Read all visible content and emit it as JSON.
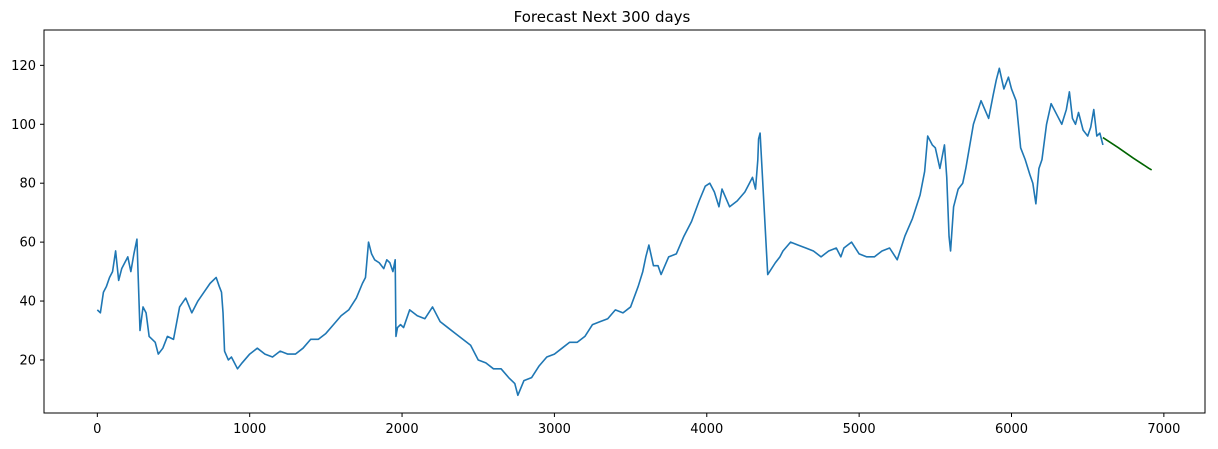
{
  "chart_data": {
    "type": "line",
    "title": "Forecast Next 300 days",
    "xlabel": "",
    "ylabel": "",
    "xlim": [
      -350,
      7270
    ],
    "ylim": [
      2,
      132
    ],
    "x_ticks": [
      0,
      1000,
      2000,
      3000,
      4000,
      5000,
      6000,
      7000
    ],
    "y_ticks": [
      20,
      40,
      60,
      80,
      100,
      120
    ],
    "grid": false,
    "legend": "none",
    "series": [
      {
        "color": "#1f77b4",
        "x": [
          0,
          20,
          40,
          60,
          80,
          100,
          120,
          140,
          160,
          180,
          200,
          220,
          240,
          260,
          280,
          300,
          320,
          340,
          360,
          380,
          400,
          430,
          460,
          500,
          540,
          580,
          620,
          660,
          700,
          740,
          780,
          800,
          815,
          825,
          835,
          860,
          880,
          900,
          920,
          950,
          1000,
          1050,
          1100,
          1150,
          1200,
          1250,
          1300,
          1350,
          1400,
          1450,
          1500,
          1550,
          1600,
          1650,
          1700,
          1740,
          1760,
          1780,
          1800,
          1820,
          1850,
          1880,
          1900,
          1920,
          1940,
          1955,
          1960,
          1970,
          1990,
          2010,
          2050,
          2100,
          2150,
          2200,
          2250,
          2300,
          2350,
          2400,
          2450,
          2500,
          2550,
          2600,
          2650,
          2700,
          2740,
          2760,
          2800,
          2850,
          2900,
          2950,
          3000,
          3050,
          3100,
          3150,
          3200,
          3250,
          3300,
          3350,
          3400,
          3450,
          3500,
          3550,
          3580,
          3600,
          3620,
          3650,
          3680,
          3700,
          3750,
          3800,
          3850,
          3900,
          3950,
          3990,
          4020,
          4050,
          4080,
          4100,
          4150,
          4200,
          4250,
          4280,
          4300,
          4320,
          4335,
          4340,
          4350,
          4400,
          4450,
          4480,
          4500,
          4550,
          4600,
          4650,
          4700,
          4750,
          4800,
          4850,
          4880,
          4900,
          4950,
          5000,
          5050,
          5100,
          5150,
          5200,
          5250,
          5300,
          5350,
          5400,
          5430,
          5450,
          5480,
          5500,
          5530,
          5560,
          5575,
          5590,
          5600,
          5620,
          5650,
          5680,
          5700,
          5750,
          5800,
          5850,
          5880,
          5900,
          5920,
          5950,
          5980,
          6000,
          6030,
          6060,
          6090,
          6120,
          6140,
          6160,
          6180,
          6200,
          6230,
          6260,
          6300,
          6330,
          6360,
          6380,
          6400,
          6420,
          6440,
          6470,
          6500,
          6520,
          6540,
          6560,
          6580,
          6600
        ],
        "y": [
          37,
          36,
          43,
          45,
          48,
          50,
          57,
          47,
          51,
          53,
          55,
          50,
          56,
          61,
          30,
          38,
          36,
          28,
          27,
          26,
          22,
          24,
          28,
          27,
          38,
          41,
          36,
          40,
          43,
          46,
          48,
          45,
          43,
          36,
          23,
          20,
          21,
          19,
          17,
          19,
          22,
          24,
          22,
          21,
          23,
          22,
          22,
          24,
          27,
          27,
          29,
          32,
          35,
          37,
          41,
          46,
          48,
          60,
          56,
          54,
          53,
          51,
          54,
          53,
          50,
          54,
          28,
          31,
          32,
          31,
          37,
          35,
          34,
          38,
          33,
          31,
          29,
          27,
          25,
          20,
          19,
          17,
          17,
          14,
          12,
          8,
          13,
          14,
          18,
          21,
          22,
          24,
          26,
          26,
          28,
          32,
          33,
          34,
          37,
          36,
          38,
          45,
          50,
          55,
          59,
          52,
          52,
          49,
          55,
          56,
          62,
          67,
          74,
          79,
          80,
          77,
          72,
          78,
          72,
          74,
          77,
          80,
          82,
          78,
          88,
          95,
          97,
          49,
          53,
          55,
          57,
          60,
          59,
          58,
          57,
          55,
          57,
          58,
          55,
          58,
          60,
          56,
          55,
          55,
          57,
          58,
          54,
          62,
          68,
          76,
          84,
          96,
          93,
          92,
          85,
          93,
          82,
          62,
          57,
          72,
          78,
          80,
          85,
          100,
          108,
          102,
          110,
          115,
          119,
          112,
          116,
          112,
          108,
          92,
          88,
          83,
          80,
          73,
          85,
          88,
          100,
          107,
          103,
          100,
          105,
          111,
          102,
          100,
          104,
          98,
          96,
          99,
          105,
          96,
          97,
          93
        ]
      },
      {
        "color": "#006400",
        "x": [
          6600,
          6700,
          6800,
          6900,
          6920
        ],
        "y": [
          95.5,
          92.1,
          88.5,
          85.1,
          84.5
        ]
      }
    ]
  }
}
